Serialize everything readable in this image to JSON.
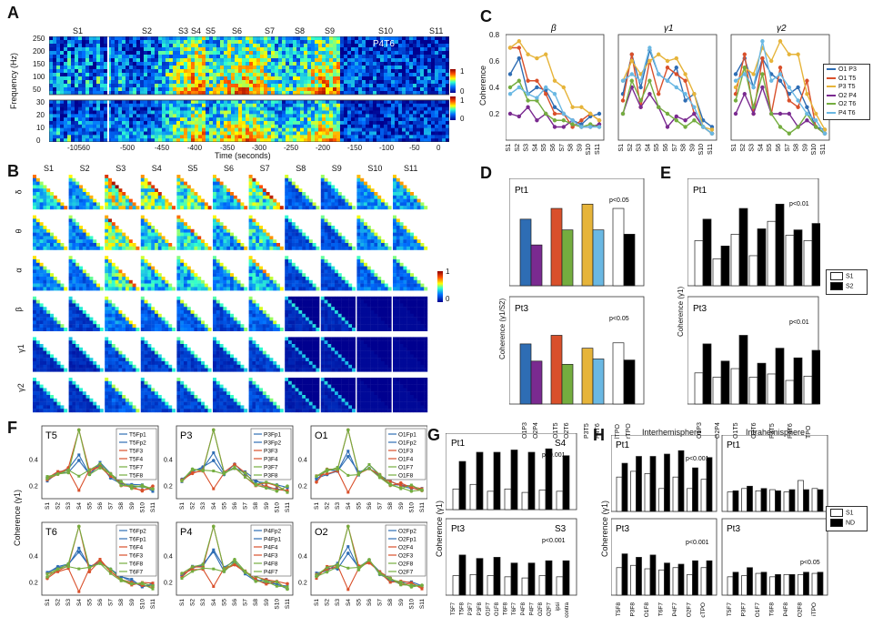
{
  "panels": {
    "A": {
      "letter": "A",
      "sessions": [
        "S1",
        "S2",
        "S3",
        "S4",
        "S5",
        "S6",
        "S7",
        "S8",
        "S9",
        "S10",
        "S11"
      ],
      "patient_tag": "P4T6",
      "ylabel": "Frequency (Hz)",
      "xlabel": "Time (seconds)",
      "xticks": [
        "-10560",
        "-500",
        "-450",
        "-400",
        "-350",
        "-300",
        "-250",
        "-200",
        "-150",
        "-100",
        "-50",
        "0"
      ],
      "yticks_top": [
        "250",
        "200",
        "150",
        "100",
        "50"
      ],
      "yticks_bottom": [
        "30",
        "20",
        "10",
        "0"
      ],
      "colorbar": [
        "1",
        "0",
        "1",
        "0"
      ]
    },
    "B": {
      "letter": "B",
      "sessions": [
        "S1",
        "S2",
        "S3",
        "S4",
        "S5",
        "S6",
        "S7",
        "S8",
        "S9",
        "S10",
        "S11"
      ],
      "bands": [
        "δ",
        "θ",
        "α",
        "β",
        "γ1",
        "γ2"
      ],
      "colorbar": [
        "1",
        "0"
      ]
    },
    "C": {
      "letter": "C",
      "titles": [
        "β",
        "γ1",
        "γ2"
      ],
      "ylabel": "Coherence",
      "yticks": [
        "0.8",
        "0.6",
        "0.4",
        "0.2"
      ],
      "legend": [
        "O1 P3",
        "O1 T5",
        "P3 T5",
        "O2 P4",
        "O2 T6",
        "P4 T6"
      ],
      "colors": [
        "#2e6db4",
        "#d9502b",
        "#e6b43a",
        "#7a2a90",
        "#74ad3f",
        "#6ab8e3"
      ]
    },
    "D": {
      "letter": "D",
      "ylabel": "Coherence (γ1/S2)",
      "patients": [
        "Pt1",
        "Pt3"
      ],
      "sig": "p<0.05",
      "xlabels": [
        "O1P3",
        "O2P4",
        "O1T5",
        "O2T6",
        "P3T5",
        "P4T6",
        "lTPO",
        "rTPO"
      ]
    },
    "E": {
      "letter": "E",
      "ylabel": "Coherence (γ1)",
      "patients": [
        "Pt1",
        "Pt3"
      ],
      "sig": "p<0.01",
      "legend": [
        "S1",
        "S2"
      ],
      "xlabels": [
        "O1P3",
        "O2P4",
        "O1T5",
        "O2T6",
        "P3T5",
        "P4T6",
        "TPO"
      ]
    },
    "F": {
      "letter": "F",
      "ylabel": "Coherence (γ1)",
      "groups": [
        {
          "title": "T5",
          "legend": [
            "T5Fp1",
            "T5Fp2",
            "T5F3",
            "T5F4",
            "T5F7",
            "T5F8"
          ]
        },
        {
          "title": "P3",
          "legend": [
            "P3Fp1",
            "P3Fp2",
            "P3F3",
            "P3F4",
            "P3F7",
            "P3F8"
          ]
        },
        {
          "title": "O1",
          "legend": [
            "O1Fp1",
            "O1Fp2",
            "O1F3",
            "O1F4",
            "O1F7",
            "O1F8"
          ]
        },
        {
          "title": "T6",
          "legend": [
            "T6Fp2",
            "T6Fp1",
            "T6F4",
            "T6F3",
            "T6F8",
            "T6F7"
          ]
        },
        {
          "title": "P4",
          "legend": [
            "P4Fp2",
            "P4Fp1",
            "P4F4",
            "P4F3",
            "P4F8",
            "P4F7"
          ]
        },
        {
          "title": "O2",
          "legend": [
            "O2Fp2",
            "O2Fp1",
            "O2F4",
            "O2F3",
            "O2F8",
            "O2F7"
          ]
        }
      ],
      "xticks": [
        "S1",
        "S2",
        "S3",
        "S4",
        "S5",
        "S6",
        "S7",
        "S8",
        "S9",
        "S10",
        "S11"
      ],
      "yticks": [
        "0.4",
        "0.2"
      ]
    },
    "G": {
      "letter": "G",
      "ylabel": "Coherence (γ1)",
      "rows": [
        {
          "patient": "Pt1",
          "session": "S4",
          "sig": "p<0.001"
        },
        {
          "patient": "Pt3",
          "session": "S3",
          "sig": "p<0.001"
        }
      ],
      "xlabels": [
        "T5F7",
        "T5F8",
        "P3F7",
        "P3F8",
        "O1F7",
        "O1F8",
        "T6F8",
        "T6F7",
        "P4F8",
        "P4F7",
        "O2F8",
        "O2F7",
        "ipsi",
        "contra"
      ]
    },
    "H": {
      "letter": "H",
      "titles": [
        "Interhemisphere",
        "Intrahemisphere"
      ],
      "ylabel": "Coherence (γ1)",
      "rows": [
        {
          "patient": "Pt1",
          "sig": "p<0.001"
        },
        {
          "patient": "Pt3",
          "sig": "p<0.001",
          "sig2": "p<0.05"
        }
      ],
      "legend": [
        "S1",
        "ND"
      ],
      "xlabels_inter": [
        "T5F8",
        "P3F8",
        "O1F8",
        "T6F7",
        "P4F7",
        "O2F7",
        "cTPO"
      ],
      "xlabels_intra": [
        "T5F7",
        "P3F7",
        "O1F7",
        "T6F8",
        "P4F8",
        "O2F8",
        "iTPO"
      ]
    }
  }
}
